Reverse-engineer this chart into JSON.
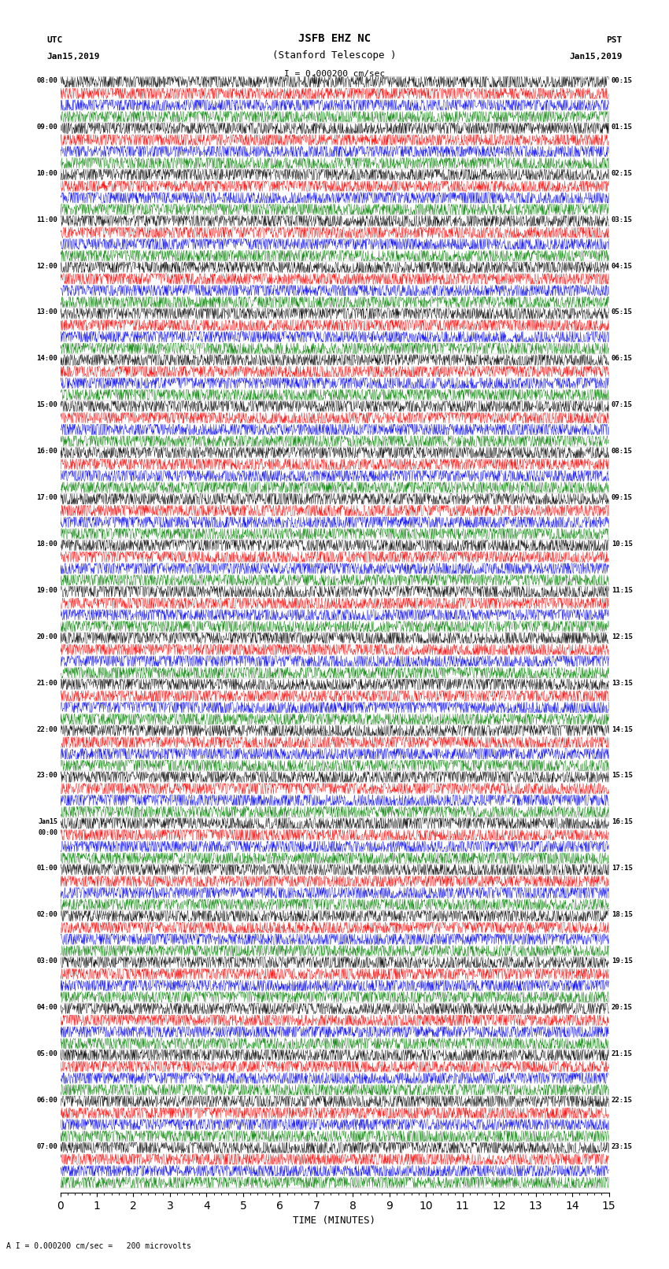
{
  "title_line1": "JSFB EHZ NC",
  "title_line2": "(Stanford Telescope )",
  "scale_text": "I = 0.000200 cm/sec",
  "bottom_text": "A I = 0.000200 cm/sec =   200 microvolts",
  "utc_label": "UTC",
  "utc_date": "Jan15,2019",
  "pst_label": "PST",
  "pst_date": "Jan15,2019",
  "xlabel": "TIME (MINUTES)",
  "left_times": [
    "08:00",
    "09:00",
    "10:00",
    "11:00",
    "12:00",
    "13:00",
    "14:00",
    "15:00",
    "16:00",
    "17:00",
    "18:00",
    "19:00",
    "20:00",
    "21:00",
    "22:00",
    "23:00",
    "Jan15\n00:00",
    "01:00",
    "02:00",
    "03:00",
    "04:00",
    "05:00",
    "06:00",
    "07:00"
  ],
  "right_times": [
    "00:15",
    "01:15",
    "02:15",
    "03:15",
    "04:15",
    "05:15",
    "06:15",
    "07:15",
    "08:15",
    "09:15",
    "10:15",
    "11:15",
    "12:15",
    "13:15",
    "14:15",
    "15:15",
    "16:15",
    "17:15",
    "18:15",
    "19:15",
    "20:15",
    "21:15",
    "22:15",
    "23:15"
  ],
  "colors": [
    "black",
    "red",
    "blue",
    "green"
  ],
  "n_rows": 24,
  "traces_per_row": 4,
  "minutes_per_row": 15,
  "fig_width": 8.5,
  "fig_height": 16.13,
  "bg_color": "white",
  "noise_scale": 0.12,
  "seed": 42
}
